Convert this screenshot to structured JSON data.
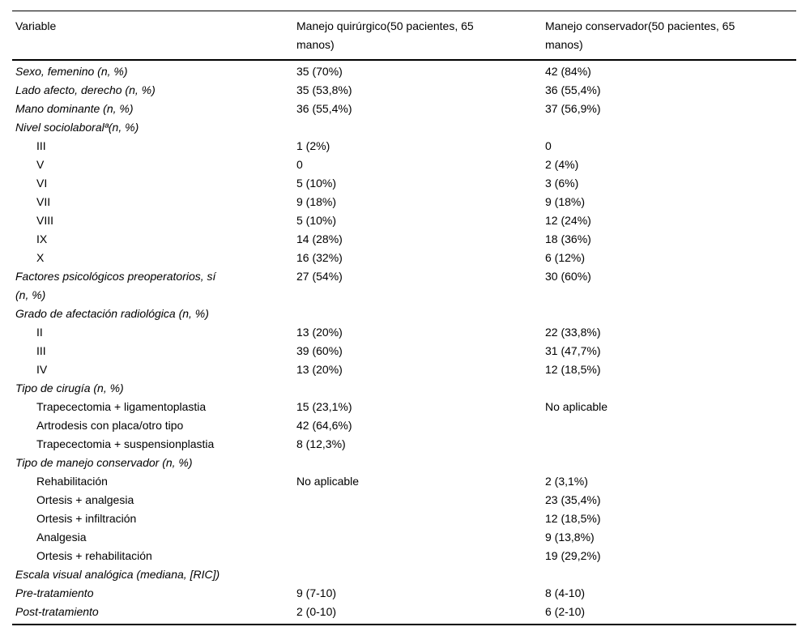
{
  "table": {
    "columns": [
      "Variable",
      "Manejo quirúrgico(50 pacientes, 65\nmanos)",
      "Manejo conservador(50 pacientes, 65\nmanos)"
    ],
    "rows": [
      {
        "label": "Sexo, femenino (n, %)",
        "italic": true,
        "indent": false,
        "quirurgico": "35 (70%)",
        "conservador": "42 (84%)"
      },
      {
        "label": "Lado afecto, derecho (n, %)",
        "italic": true,
        "indent": false,
        "quirurgico": "35 (53,8%)",
        "conservador": "36 (55,4%)"
      },
      {
        "label": "Mano dominante (n, %)",
        "italic": true,
        "indent": false,
        "quirurgico": "36 (55,4%)",
        "conservador": "37 (56,9%)"
      },
      {
        "label": "Nivel sociolaboralª(n, %)",
        "italic": true,
        "indent": false,
        "quirurgico": "",
        "conservador": ""
      },
      {
        "label": "III",
        "italic": false,
        "indent": true,
        "quirurgico": "1 (2%)",
        "conservador": "0"
      },
      {
        "label": "V",
        "italic": false,
        "indent": true,
        "quirurgico": "0",
        "conservador": "2 (4%)"
      },
      {
        "label": "VI",
        "italic": false,
        "indent": true,
        "quirurgico": "5 (10%)",
        "conservador": "3 (6%)"
      },
      {
        "label": "VII",
        "italic": false,
        "indent": true,
        "quirurgico": "9 (18%)",
        "conservador": "9 (18%)"
      },
      {
        "label": "VIII",
        "italic": false,
        "indent": true,
        "quirurgico": "5 (10%)",
        "conservador": "12 (24%)"
      },
      {
        "label": "IX",
        "italic": false,
        "indent": true,
        "quirurgico": "14 (28%)",
        "conservador": "18 (36%)"
      },
      {
        "label": "X",
        "italic": false,
        "indent": true,
        "quirurgico": "16 (32%)",
        "conservador": "6 (12%)"
      },
      {
        "label": "Factores psicológicos preoperatorios, sí\n(n, %)",
        "italic": true,
        "indent": false,
        "quirurgico": "27 (54%)",
        "conservador": "30 (60%)"
      },
      {
        "label": "Grado de afectación radiológica (n, %)",
        "italic": true,
        "indent": false,
        "quirurgico": "",
        "conservador": ""
      },
      {
        "label": "II",
        "italic": false,
        "indent": true,
        "quirurgico": "13 (20%)",
        "conservador": "22 (33,8%)"
      },
      {
        "label": "III",
        "italic": false,
        "indent": true,
        "quirurgico": "39 (60%)",
        "conservador": "31 (47,7%)"
      },
      {
        "label": "IV",
        "italic": false,
        "indent": true,
        "quirurgico": "13 (20%)",
        "conservador": "12 (18,5%)"
      },
      {
        "label": "Tipo de cirugía (n, %)",
        "italic": true,
        "indent": false,
        "quirurgico": "",
        "conservador": ""
      },
      {
        "label": "Trapecectomia + ligamentoplastia",
        "italic": false,
        "indent": true,
        "quirurgico": "15 (23,1%)",
        "conservador": "No aplicable"
      },
      {
        "label": "Artrodesis con placa/otro tipo",
        "italic": false,
        "indent": true,
        "quirurgico": "42 (64,6%)",
        "conservador": ""
      },
      {
        "label": "Trapecectomia + suspensionplastia",
        "italic": false,
        "indent": true,
        "quirurgico": "8 (12,3%)",
        "conservador": ""
      },
      {
        "label": "Tipo de manejo conservador (n, %)",
        "italic": true,
        "indent": false,
        "quirurgico": "",
        "conservador": ""
      },
      {
        "label": "Rehabilitación",
        "italic": false,
        "indent": true,
        "quirurgico": "No aplicable",
        "conservador": "2 (3,1%)"
      },
      {
        "label": "Ortesis + analgesia",
        "italic": false,
        "indent": true,
        "quirurgico": "",
        "conservador": "23 (35,4%)"
      },
      {
        "label": "Ortesis + infiltración",
        "italic": false,
        "indent": true,
        "quirurgico": "",
        "conservador": "12 (18,5%)"
      },
      {
        "label": "Analgesia",
        "italic": false,
        "indent": true,
        "quirurgico": "",
        "conservador": "9 (13,8%)"
      },
      {
        "label": "Ortesis + rehabilitación",
        "italic": false,
        "indent": true,
        "quirurgico": "",
        "conservador": "19 (29,2%)"
      },
      {
        "label": "Escala visual analógica (mediana, [RIC])",
        "italic": true,
        "indent": false,
        "quirurgico": "",
        "conservador": ""
      },
      {
        "label": "Pre-tratamiento",
        "italic": true,
        "indent": false,
        "quirurgico": "9 (7-10)",
        "conservador": "8 (4-10)"
      },
      {
        "label": "Post-tratamiento",
        "italic": true,
        "indent": false,
        "quirurgico": "2 (0-10)",
        "conservador": "6 (2-10)"
      }
    ]
  }
}
